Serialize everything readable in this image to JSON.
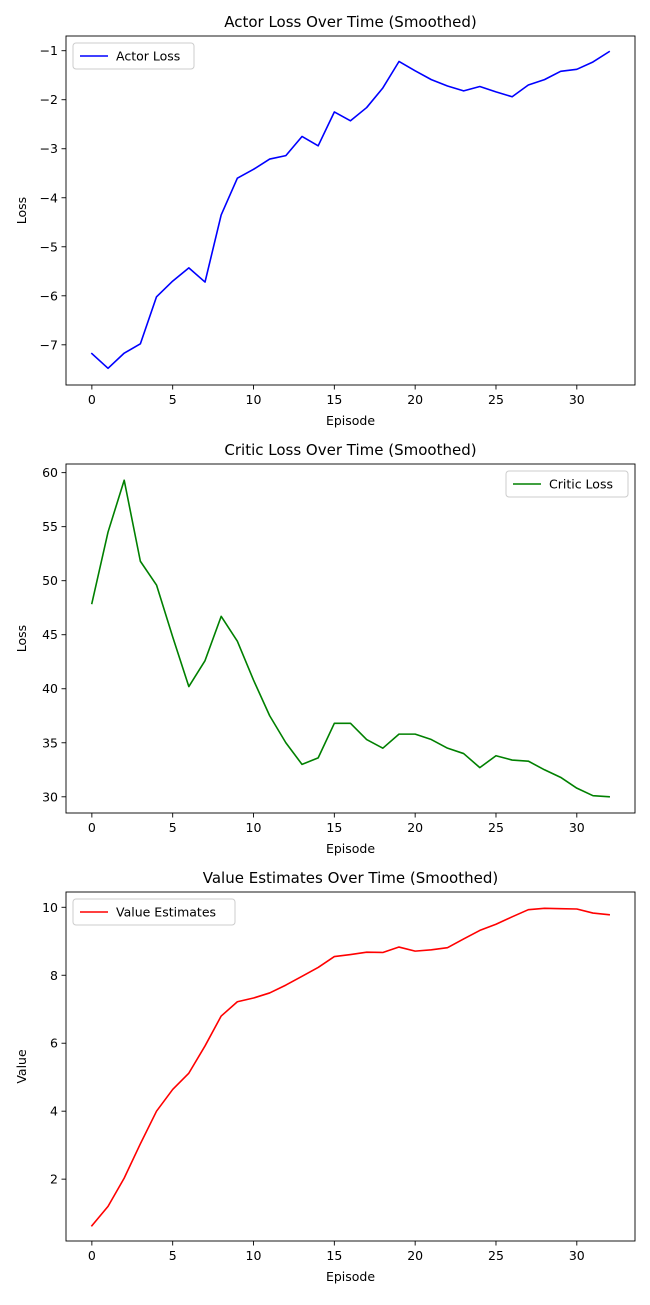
{
  "chart_data": [
    {
      "type": "line",
      "title": "Actor Loss Over Time (Smoothed)",
      "xlabel": "Episode",
      "ylabel": "Loss",
      "xlim": [
        -1.6,
        33.6
      ],
      "ylim": [
        -7.82,
        -0.7
      ],
      "xticks": [
        0,
        5,
        10,
        15,
        20,
        25,
        30
      ],
      "yticks": [
        -7,
        -6,
        -5,
        -4,
        -3,
        -2,
        -1
      ],
      "grid": false,
      "legend_position": "top-left",
      "series": [
        {
          "name": "Actor Loss",
          "color": "#0000ff",
          "x": [
            0,
            1,
            2,
            3,
            4,
            5,
            6,
            7,
            8,
            9,
            10,
            11,
            12,
            13,
            14,
            15,
            16,
            17,
            18,
            19,
            20,
            21,
            22,
            23,
            24,
            25,
            26,
            27,
            28,
            29,
            30,
            31,
            32
          ],
          "values": [
            -7.18,
            -7.48,
            -7.17,
            -6.98,
            -6.02,
            -5.7,
            -5.43,
            -5.72,
            -4.35,
            -3.6,
            -3.42,
            -3.21,
            -3.14,
            -2.75,
            -2.94,
            -2.25,
            -2.43,
            -2.16,
            -1.76,
            -1.22,
            -1.41,
            -1.59,
            -1.72,
            -1.82,
            -1.73,
            -1.84,
            -1.94,
            -1.7,
            -1.59,
            -1.42,
            -1.38,
            -1.23,
            -1.02
          ]
        }
      ]
    },
    {
      "type": "line",
      "title": "Critic Loss Over Time (Smoothed)",
      "xlabel": "Episode",
      "ylabel": "Loss",
      "xlim": [
        -1.6,
        33.6
      ],
      "ylim": [
        28.5,
        60.8
      ],
      "xticks": [
        0,
        5,
        10,
        15,
        20,
        25,
        30
      ],
      "yticks": [
        30,
        35,
        40,
        45,
        50,
        55,
        60
      ],
      "grid": false,
      "legend_position": "top-right",
      "series": [
        {
          "name": "Critic Loss",
          "color": "#008000",
          "x": [
            0,
            1,
            2,
            3,
            4,
            5,
            6,
            7,
            8,
            9,
            10,
            11,
            12,
            13,
            14,
            15,
            16,
            17,
            18,
            19,
            20,
            21,
            22,
            23,
            24,
            25,
            26,
            27,
            28,
            29,
            30,
            31,
            32
          ],
          "values": [
            47.9,
            54.5,
            59.3,
            51.8,
            49.6,
            44.8,
            40.2,
            42.6,
            46.7,
            44.4,
            40.8,
            37.5,
            35.0,
            33.0,
            33.6,
            36.8,
            36.8,
            35.3,
            34.5,
            35.8,
            35.8,
            35.3,
            34.5,
            34.0,
            32.7,
            33.8,
            33.4,
            33.3,
            32.5,
            31.8,
            30.8,
            30.1,
            30.0
          ]
        }
      ]
    },
    {
      "type": "line",
      "title": "Value Estimates Over Time (Smoothed)",
      "xlabel": "Episode",
      "ylabel": "Value",
      "xlim": [
        -1.6,
        33.6
      ],
      "ylim": [
        0.18,
        10.45
      ],
      "xticks": [
        0,
        5,
        10,
        15,
        20,
        25,
        30
      ],
      "yticks": [
        2,
        4,
        6,
        8,
        10
      ],
      "grid": false,
      "legend_position": "top-left",
      "series": [
        {
          "name": "Value Estimates",
          "color": "#ff0000",
          "x": [
            0,
            1,
            2,
            3,
            4,
            5,
            6,
            7,
            8,
            9,
            10,
            11,
            12,
            13,
            14,
            15,
            16,
            17,
            18,
            19,
            20,
            21,
            22,
            23,
            24,
            25,
            26,
            27,
            28,
            29,
            30,
            31,
            32
          ],
          "values": [
            0.63,
            1.2,
            2.03,
            3.04,
            4.0,
            4.64,
            5.12,
            5.92,
            6.8,
            7.22,
            7.33,
            7.48,
            7.71,
            7.97,
            8.23,
            8.55,
            8.61,
            8.68,
            8.67,
            8.83,
            8.71,
            8.75,
            8.81,
            9.07,
            9.32,
            9.5,
            9.72,
            9.93,
            9.97,
            9.96,
            9.95,
            9.83,
            9.78
          ]
        }
      ]
    }
  ]
}
